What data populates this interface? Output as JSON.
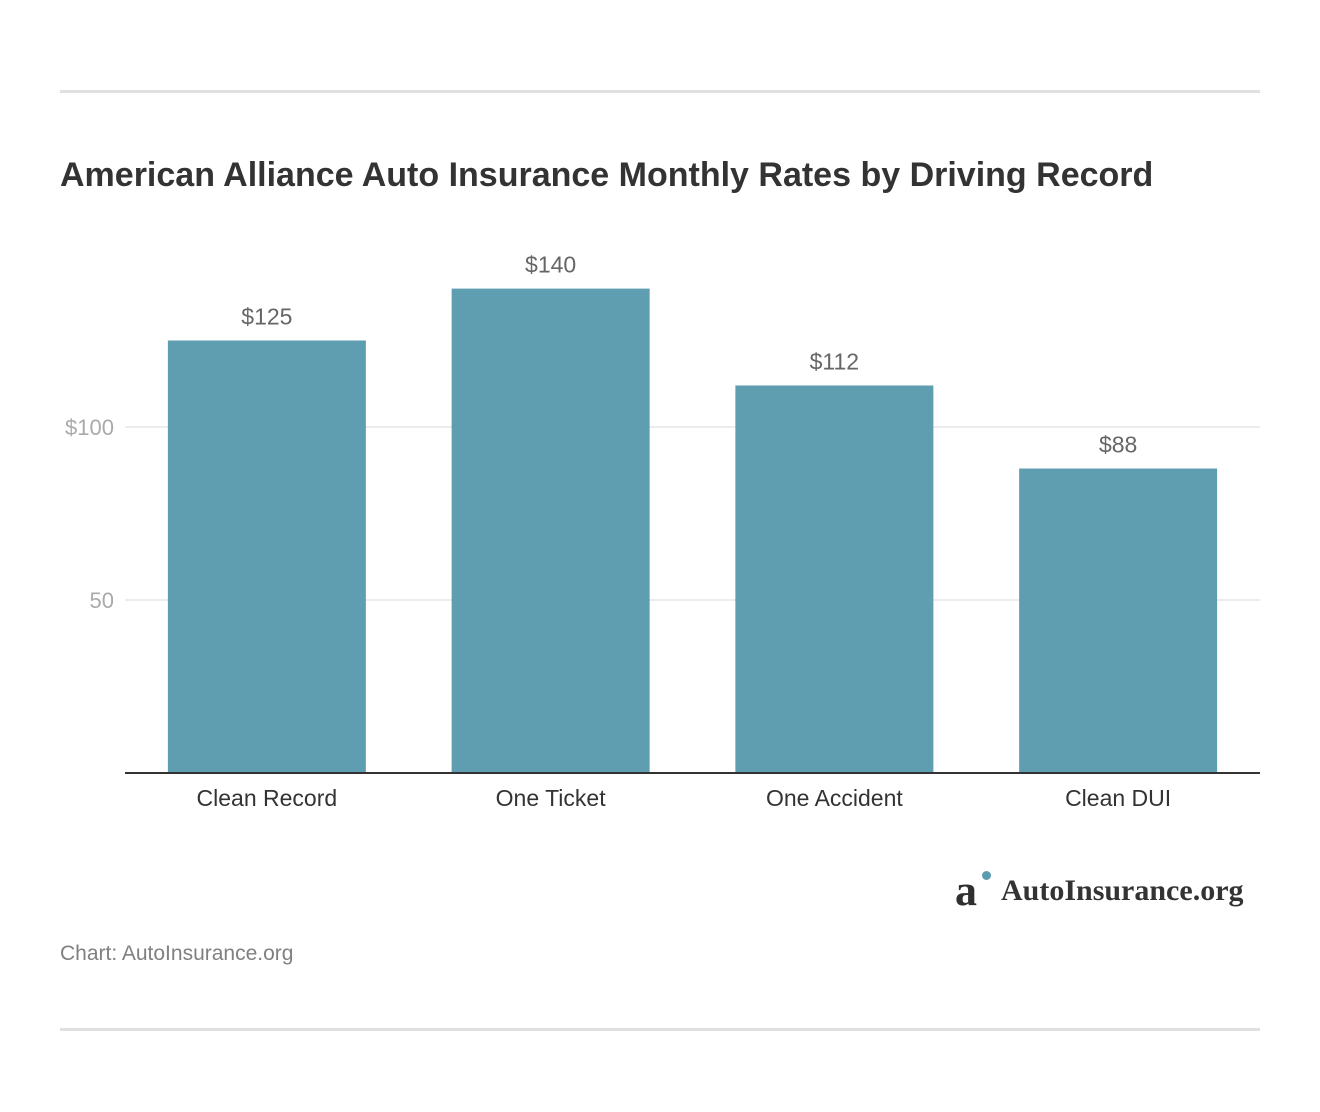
{
  "title": "American Alliance Auto Insurance Monthly Rates by Driving Record",
  "source": "Chart: AutoInsurance.org",
  "logo": {
    "text": "AutoInsurance.org",
    "mark_icon": "autoinsurance-logo-icon",
    "dot_color": "#5b9db0"
  },
  "colors": {
    "bar": "#5e9eb0",
    "grid": "#e6e6e6",
    "axis": "#333333",
    "tick_text": "#aaaaaa",
    "value_text": "#666666",
    "category_text": "#333333"
  },
  "chart_data": {
    "type": "bar",
    "title": "American Alliance Auto Insurance Monthly Rates by Driving Record",
    "categories": [
      "Clean Record",
      "One Ticket",
      "One Accident",
      "Clean DUI"
    ],
    "values": [
      125,
      140,
      112,
      88
    ],
    "value_labels": [
      "$125",
      "$140",
      "$112",
      "$88"
    ],
    "ylim": [
      0,
      160
    ],
    "yticks": [
      50,
      100
    ],
    "ytick_labels": [
      "50",
      "$100"
    ],
    "grid": true,
    "legend": "none",
    "xlabel": "",
    "ylabel": ""
  }
}
